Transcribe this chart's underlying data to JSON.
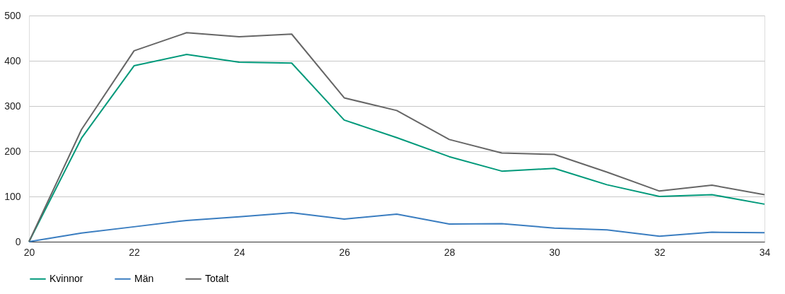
{
  "chart_data": {
    "type": "line",
    "x": [
      20,
      21,
      22,
      23,
      24,
      25,
      26,
      27,
      28,
      29,
      30,
      31,
      32,
      33,
      34
    ],
    "series": [
      {
        "name": "Kvinnor",
        "color": "#00997a",
        "values": [
          0,
          229,
          389,
          414,
          397,
          395,
          269,
          230,
          188,
          156,
          162,
          126,
          100,
          104,
          83
        ]
      },
      {
        "name": "Män",
        "color": "#3a7dc0",
        "values": [
          0,
          19,
          33,
          47,
          55,
          64,
          50,
          61,
          39,
          40,
          30,
          26,
          12,
          21,
          20
        ]
      },
      {
        "name": "Totalt",
        "color": "#666666",
        "values": [
          0,
          248,
          422,
          462,
          453,
          459,
          318,
          290,
          226,
          196,
          193,
          154,
          112,
          125,
          104
        ]
      }
    ],
    "xlim": [
      20,
      34
    ],
    "xticks": [
      20,
      22,
      24,
      26,
      28,
      30,
      32,
      34
    ],
    "ylim": [
      0,
      500
    ],
    "yticks": [
      0,
      100,
      200,
      300,
      400,
      500
    ],
    "grid": "y",
    "legend": "bottom",
    "marker": "none",
    "line_style": "solid"
  }
}
